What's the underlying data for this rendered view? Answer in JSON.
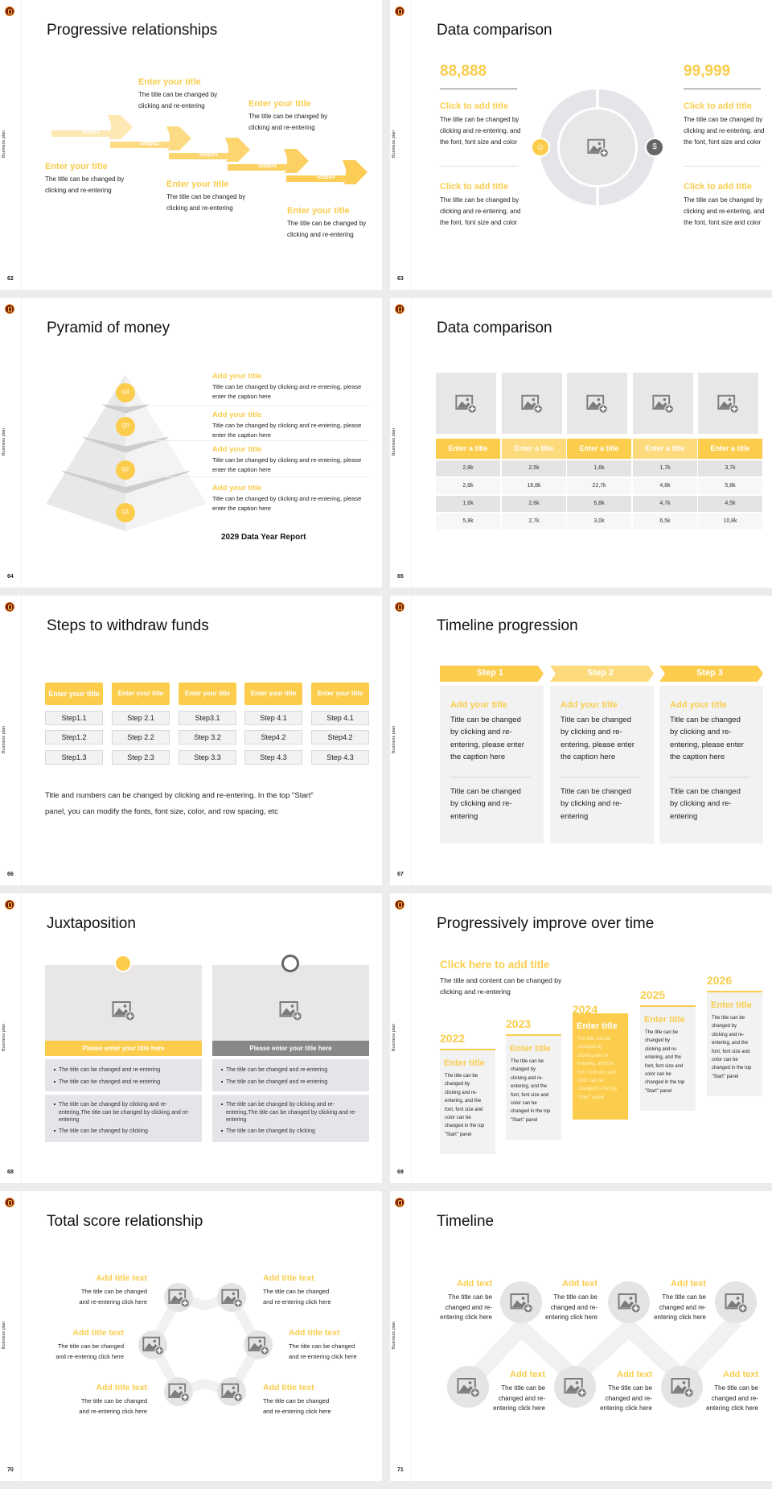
{
  "sidebar_label": "Business plan",
  "colors": {
    "accent": "#fccd4d",
    "accent_light": "#fdda7c",
    "panel": "#f2f2f2",
    "placeholder": "#e8e6e7",
    "dark_bar": "#888888"
  },
  "slides": [
    {
      "page": "62",
      "title": "Progressive relationships",
      "steps": [
        "Step01",
        "Step02",
        "Step03",
        "Step04",
        "Step05"
      ],
      "items": [
        {
          "title": "Enter your title",
          "body": "The title can be changed by\nclicking and re-entering"
        },
        {
          "title": "Enter your title",
          "body": "The title can be changed by\nclicking and re-entering"
        },
        {
          "title": "Enter your title",
          "body": "The title can be changed by\nclicking and re-entering"
        },
        {
          "title": "Enter your title",
          "body": "The title can be changed by\nclicking and re-entering"
        },
        {
          "title": "Enter your title",
          "body": "The title can be changed by\nclicking and re-entering"
        }
      ]
    },
    {
      "page": "63",
      "title": "Data comparison",
      "left": {
        "value": "88,888",
        "icon": "user-icon",
        "items": [
          {
            "title": "Click to add title",
            "body": "The title can be changed by\nclicking and re-entering, and\nthe font, font size and color"
          },
          {
            "title": "Click to add title",
            "body": "The title can be changed by\nclicking and re-entering, and\nthe font, font size and color"
          }
        ]
      },
      "right": {
        "value": "99,999",
        "icon": "money-bag-icon",
        "items": [
          {
            "title": "Click to add title",
            "body": "The title can be changed by\nclicking and re-entering, and\nthe font, font size and color"
          },
          {
            "title": "Click to add title",
            "body": "The title can be changed by\nclicking and re-entering, and\nthe font, font size and color"
          }
        ]
      }
    },
    {
      "page": "64",
      "title": "Pyramid of money",
      "levels": [
        "Q4",
        "Q3",
        "Q2",
        "Q1"
      ],
      "items": [
        {
          "title": "Add your title",
          "body": "Title can be changed by clicking and re-entering, please\nenter the caption here"
        },
        {
          "title": "Add your title",
          "body": "Title can be changed by clicking and re-entering, please\nenter the caption here"
        },
        {
          "title": "Add your title",
          "body": "Title can be changed by clicking and re-entering, please\nenter the caption here"
        },
        {
          "title": "Add your title",
          "body": "Title can be changed by clicking and re-entering, please\nenter the caption here"
        }
      ],
      "report": "2029 Data Year Report"
    },
    {
      "page": "65",
      "title": "Data comparison",
      "headers": [
        "Enter a title",
        "Enter a title",
        "Enter a title",
        "Enter a title",
        "Enter a title"
      ],
      "rows": [
        [
          "2,8k",
          "2,5k",
          "1,6k",
          "1,7k",
          "3,7k"
        ],
        [
          "2,8k",
          "16,8k",
          "22,7k",
          "4,8k",
          "5,8k"
        ],
        [
          "1,6k",
          "2,6k",
          "6,8k",
          "4,7k",
          "4,5k"
        ],
        [
          "5,8k",
          "2,7k",
          "3,0k",
          "6,5k",
          "10,8k"
        ]
      ]
    },
    {
      "page": "66",
      "title": "Steps to withdraw funds",
      "columns": [
        {
          "header": "Enter your title",
          "steps": [
            "Step1.1",
            "Step1.2",
            "Step1.3"
          ]
        },
        {
          "header": "Enter your title",
          "steps": [
            "Step 2.1",
            "Step 2.2",
            "Step 2.3"
          ]
        },
        {
          "header": "Enter your title",
          "steps": [
            "Step3.1",
            "Step 3.2",
            "Step 3.3"
          ]
        },
        {
          "header": "Enter your title",
          "steps": [
            "Step 4.1",
            "Step4.2",
            "Step 4.3"
          ]
        },
        {
          "header": "Enter your title",
          "steps": [
            "Step 4.1",
            "Step4.2",
            "Step 4.3"
          ]
        }
      ],
      "note": "Title and numbers can be changed by clicking and re-entering. In the top \"Start\"\npanel, you can modify the fonts, font size, color, and row spacing, etc"
    },
    {
      "page": "67",
      "title": "Timeline progression",
      "steps": [
        {
          "label": "Step 1",
          "title": "Add your title",
          "body": "Title can be changed\nby clicking and re-\nentering, please enter\nthe caption here",
          "body2": "Title can be changed\nby clicking and re-\nentering"
        },
        {
          "label": "Step 2",
          "title": "Add your title",
          "body": "Title can be changed\nby clicking and re-\nentering, please enter\nthe caption here",
          "body2": "Title can be changed\nby clicking and re-\nentering"
        },
        {
          "label": "Step 3",
          "title": "Add your title",
          "body": "Title can be changed\nby clicking and re-\nentering, please enter\nthe caption here",
          "body2": "Title can be changed\nby clicking and re-\nentering"
        }
      ]
    },
    {
      "page": "68",
      "title": "Juxtaposition",
      "cards": [
        {
          "icon": "bar-chart-icon",
          "title": "Please enter your title here",
          "bullets1": [
            "The title can be changed and re-entering",
            "The title can be changed and re-entering"
          ],
          "bullets2": [
            "The title can be changed by clicking and re-entering,The title can be changed by clicking and re-entering",
            "The title can be changed by clicking"
          ]
        },
        {
          "icon": "clock-icon",
          "title": "Please enter your title here",
          "bullets1": [
            "The title can be changed and re-entering",
            "The title can be changed and re-entering"
          ],
          "bullets2": [
            "The title can be changed by clicking and re-entering,The title can be changed by clicking and re-entering",
            "The title can be changed by clicking"
          ]
        }
      ]
    },
    {
      "page": "69",
      "title": "Progressively improve over time",
      "heading": "Click here to add title",
      "intro": "The title and content can be changed by\nclicking and re-entering",
      "years": [
        {
          "year": "2022",
          "title": "Enter title",
          "body": "The title can be\nchanged by\nclicking and re-\nentering, and the\nfont, font size and\ncolor can be\nchanged in the top\n\"Start\" panel"
        },
        {
          "year": "2023",
          "title": "Enter title",
          "body": "The title can be\nchanged by\nclicking and re-\nentering, and the\nfont, font size and\ncolor can be\nchanged in the top\n\"Start\" panel"
        },
        {
          "year": "2024",
          "title": "Enter title",
          "body": "The title can be\nchanged by\nclicking and re-\nentering, and the\nfont, font size and\ncolor can be\nchanged in the top\n\"Start\" panel"
        },
        {
          "year": "2025",
          "title": "Enter title",
          "body": "The title can be\nchanged by\nclicking and re-\nentering, and the\nfont, font size and\ncolor can be\nchanged in the top\n\"Start\" panel"
        },
        {
          "year": "2026",
          "title": "Enter title",
          "body": "The title can be\nchanged by\nclicking and re-\nentering, and the\nfont, font size and\ncolor can be\nchanged in the top\n\"Start\" panel"
        }
      ]
    },
    {
      "page": "70",
      "title": "Total score relationship",
      "items": [
        {
          "title": "Add title text",
          "body": "The title can be changed\nand re-entering click here"
        },
        {
          "title": "Add title text",
          "body": "The title can be changed\nand re-entering click here"
        },
        {
          "title": "Add title text",
          "body": "The title can be changed\nand re-entering click here"
        },
        {
          "title": "Add title text",
          "body": "The title can be changed\nand re-entering click here"
        },
        {
          "title": "Add title text",
          "body": "The title can be changed\nand re-entering click here"
        },
        {
          "title": "Add title text",
          "body": "The title can be changed\nand re-entering click here"
        }
      ]
    },
    {
      "page": "71",
      "title": "Timeline",
      "items": [
        {
          "title": "Add text",
          "body": "The title can be\nchanged and re-\nentering click here"
        },
        {
          "title": "Add text",
          "body": "The title can be\nchanged and re-\nentering click here"
        },
        {
          "title": "Add text",
          "body": "The title can be\nchanged and re-\nentering click here"
        },
        {
          "title": "Add text",
          "body": "The title can be\nchanged and re-\nentering click here"
        },
        {
          "title": "Add text",
          "body": "The title can be\nchanged and re-\nentering click here"
        },
        {
          "title": "Add text",
          "body": "The title can be\nchanged and re-\nentering click here"
        }
      ]
    }
  ]
}
